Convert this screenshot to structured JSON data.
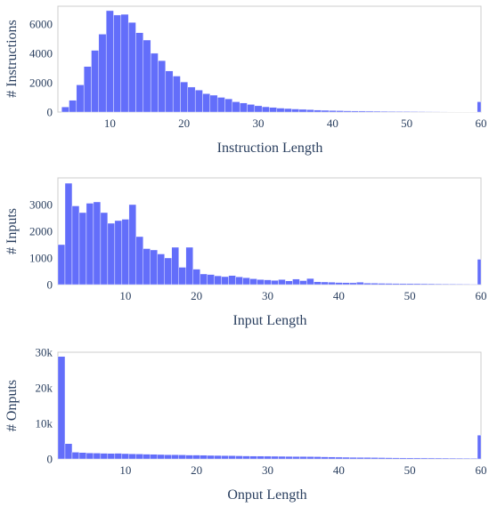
{
  "chart_data": [
    {
      "type": "bar",
      "xlabel": "Instruction Length",
      "ylabel": "# Instructions",
      "xlim": [
        3,
        60
      ],
      "ylim": [
        0,
        7200
      ],
      "xticks": [
        10,
        20,
        30,
        40,
        50,
        60
      ],
      "yticks": [
        0,
        2000,
        4000,
        6000
      ],
      "ytick_labels": [
        "0",
        "2000",
        "4000",
        "6000"
      ],
      "xtick_labels": [
        "10",
        "20",
        "30",
        "40",
        "50",
        "60"
      ],
      "grid": false,
      "x": [
        4,
        5,
        6,
        7,
        8,
        9,
        10,
        11,
        12,
        13,
        14,
        15,
        16,
        17,
        18,
        19,
        20,
        21,
        22,
        23,
        24,
        25,
        26,
        27,
        28,
        29,
        30,
        31,
        32,
        33,
        34,
        35,
        36,
        37,
        38,
        39,
        40,
        41,
        42,
        43,
        44,
        45,
        46,
        47,
        48,
        49,
        50,
        51,
        52,
        53,
        54,
        55,
        56,
        57,
        58,
        59,
        60
      ],
      "values": [
        350,
        800,
        1850,
        3100,
        4200,
        5300,
        6900,
        6600,
        6650,
        6100,
        5400,
        4900,
        4000,
        3500,
        2800,
        2450,
        2050,
        1700,
        1500,
        1250,
        1150,
        1000,
        900,
        700,
        620,
        520,
        430,
        360,
        320,
        270,
        240,
        210,
        185,
        165,
        140,
        120,
        105,
        95,
        85,
        78,
        70,
        65,
        60,
        55,
        50,
        45,
        42,
        38,
        35,
        32,
        30,
        28,
        25,
        23,
        20,
        18,
        700
      ]
    },
    {
      "type": "bar",
      "xlabel": "Input Length",
      "ylabel": "# Inputs",
      "xlim": [
        0.5,
        60
      ],
      "ylim": [
        0,
        4000
      ],
      "xticks": [
        10,
        20,
        30,
        40,
        50,
        60
      ],
      "yticks": [
        0,
        1000,
        2000,
        3000
      ],
      "ytick_labels": [
        "0",
        "1000",
        "2000",
        "3000"
      ],
      "xtick_labels": [
        "10",
        "20",
        "30",
        "40",
        "50",
        "60"
      ],
      "grid": false,
      "x": [
        1,
        2,
        3,
        4,
        5,
        6,
        7,
        8,
        9,
        10,
        11,
        12,
        13,
        14,
        15,
        16,
        17,
        18,
        19,
        20,
        21,
        22,
        23,
        24,
        25,
        26,
        27,
        28,
        29,
        30,
        31,
        32,
        33,
        34,
        35,
        36,
        37,
        38,
        39,
        40,
        41,
        42,
        43,
        44,
        45,
        46,
        47,
        48,
        49,
        50,
        51,
        52,
        53,
        54,
        55,
        56,
        57,
        58,
        59,
        60
      ],
      "values": [
        1500,
        3800,
        2950,
        2700,
        3050,
        3100,
        2700,
        2300,
        2400,
        2450,
        3000,
        1800,
        1350,
        1300,
        1150,
        1000,
        1400,
        650,
        1400,
        580,
        400,
        380,
        330,
        300,
        340,
        290,
        260,
        220,
        190,
        180,
        160,
        190,
        140,
        210,
        150,
        230,
        110,
        100,
        90,
        80,
        75,
        70,
        90,
        60,
        55,
        50,
        48,
        45,
        42,
        40,
        38,
        35,
        33,
        30,
        28,
        25,
        22,
        20,
        18,
        950
      ]
    },
    {
      "type": "bar",
      "xlabel": "Onput Length",
      "ylabel": "# Onputs",
      "xlim": [
        0.5,
        60
      ],
      "ylim": [
        0,
        30000
      ],
      "xticks": [
        10,
        20,
        30,
        40,
        50,
        60
      ],
      "yticks": [
        0,
        10000,
        20000,
        30000
      ],
      "ytick_labels": [
        "0",
        "10k",
        "20k",
        "30k"
      ],
      "xtick_labels": [
        "10",
        "20",
        "30",
        "40",
        "50",
        "60"
      ],
      "grid": false,
      "x": [
        1,
        2,
        3,
        4,
        5,
        6,
        7,
        8,
        9,
        10,
        11,
        12,
        13,
        14,
        15,
        16,
        17,
        18,
        19,
        20,
        21,
        22,
        23,
        24,
        25,
        26,
        27,
        28,
        29,
        30,
        31,
        32,
        33,
        34,
        35,
        36,
        37,
        38,
        39,
        40,
        41,
        42,
        43,
        44,
        45,
        46,
        47,
        48,
        49,
        50,
        51,
        52,
        53,
        54,
        55,
        56,
        57,
        58,
        59,
        60
      ],
      "values": [
        28800,
        4300,
        1900,
        1800,
        1700,
        1650,
        1600,
        1550,
        1600,
        1500,
        1450,
        1400,
        1350,
        1300,
        1250,
        1200,
        1200,
        1150,
        1100,
        1100,
        1050,
        1000,
        980,
        950,
        920,
        880,
        850,
        820,
        800,
        780,
        760,
        740,
        720,
        700,
        680,
        660,
        640,
        600,
        560,
        520,
        490,
        460,
        440,
        420,
        400,
        380,
        360,
        340,
        320,
        300,
        290,
        280,
        270,
        260,
        250,
        240,
        230,
        220,
        210,
        6700
      ]
    }
  ]
}
